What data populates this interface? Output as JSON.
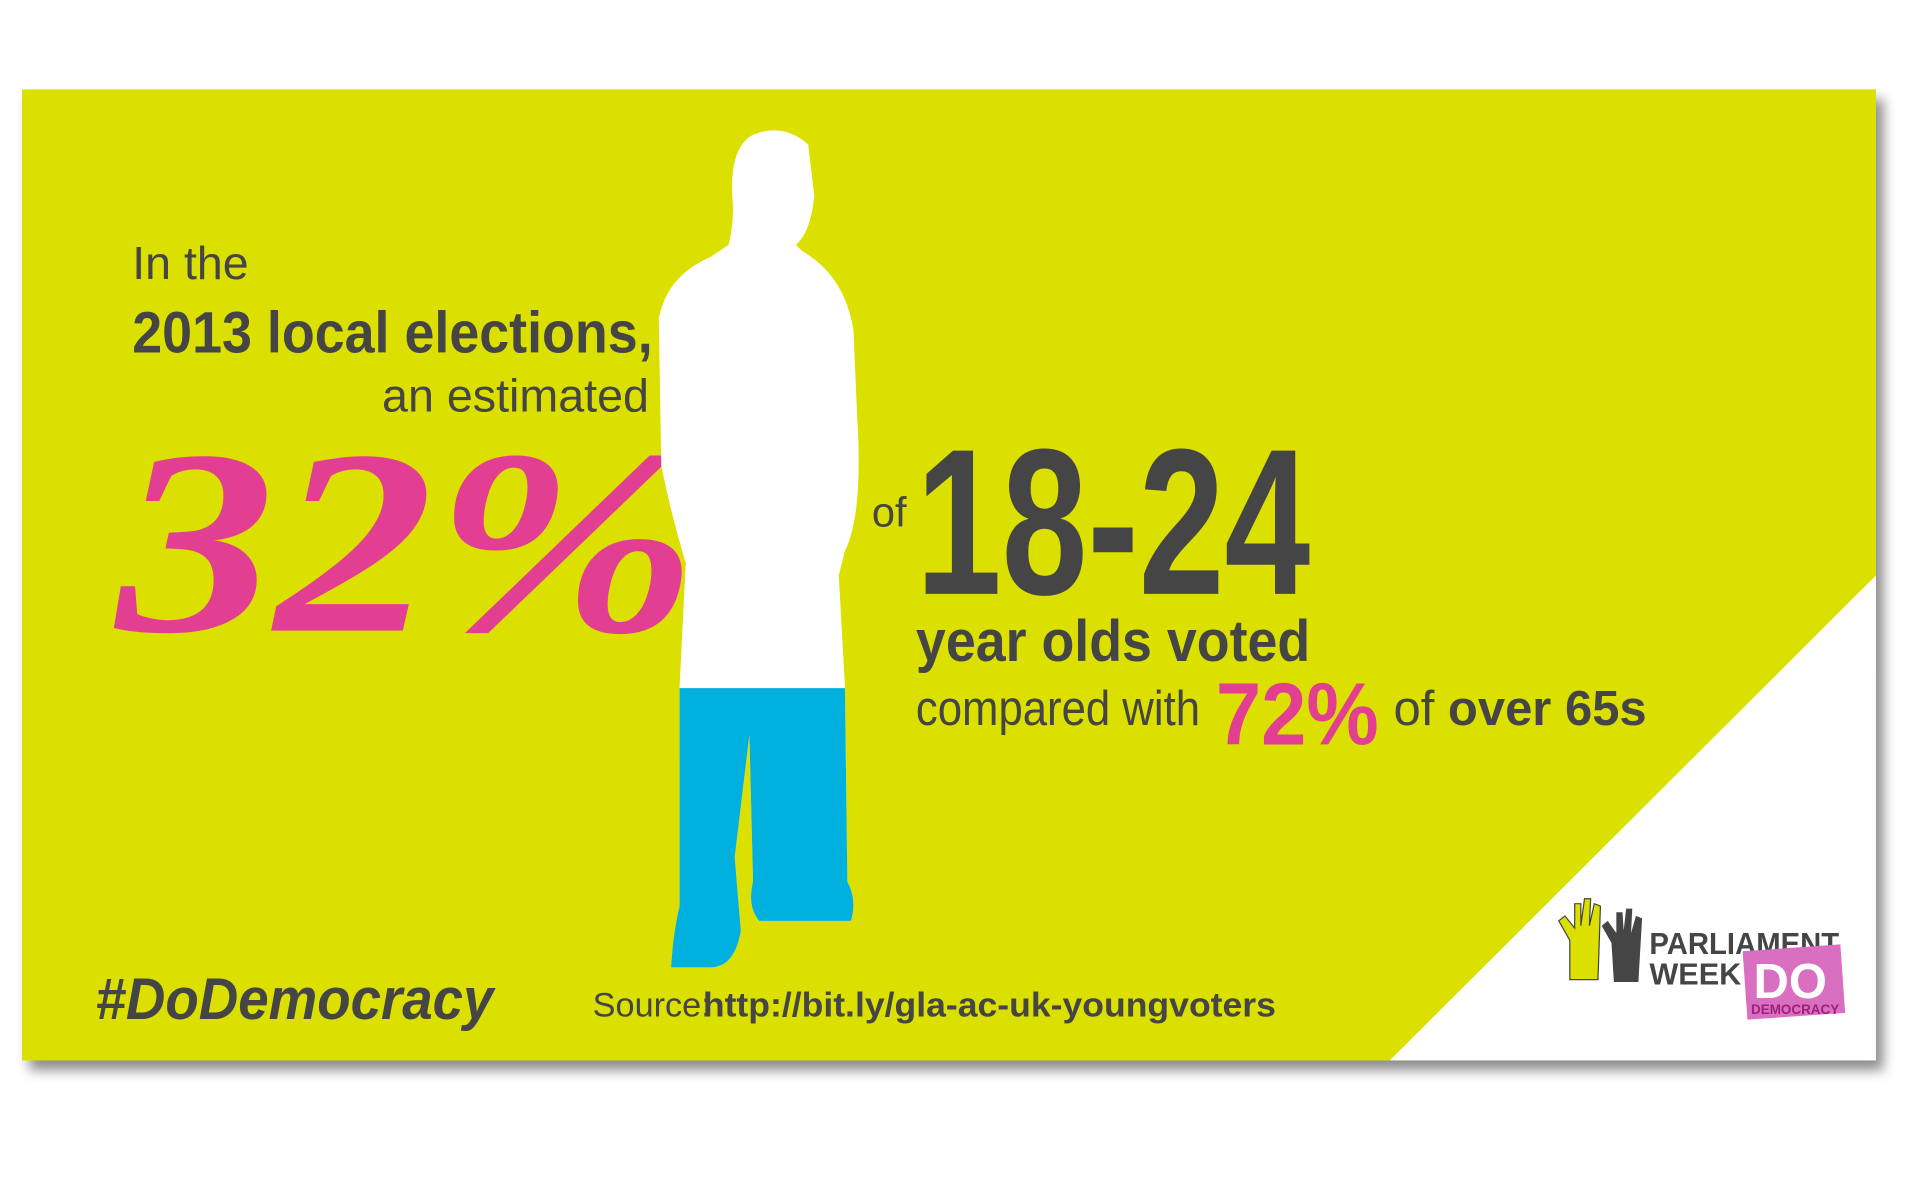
{
  "intro": {
    "line1": "In the",
    "line2": "2013 local elections,",
    "line3": "an estimated"
  },
  "headline": {
    "value": "32%",
    "connector": "of",
    "age_group": "18-24",
    "line1": "year olds voted",
    "compare_prefix": "compared with",
    "compare_value": "72%",
    "compare_of": "of",
    "compare_group": "over 65s"
  },
  "hashtag": "#DoDemocracy",
  "source": {
    "label": "Source:",
    "url": "http://bit.ly/gla-ac-uk-youngvoters"
  },
  "logo": {
    "line1": "PARLIAMENT",
    "line2": "WEEK",
    "badge": "DO",
    "badge_sub": "DEMOCRACY"
  }
}
